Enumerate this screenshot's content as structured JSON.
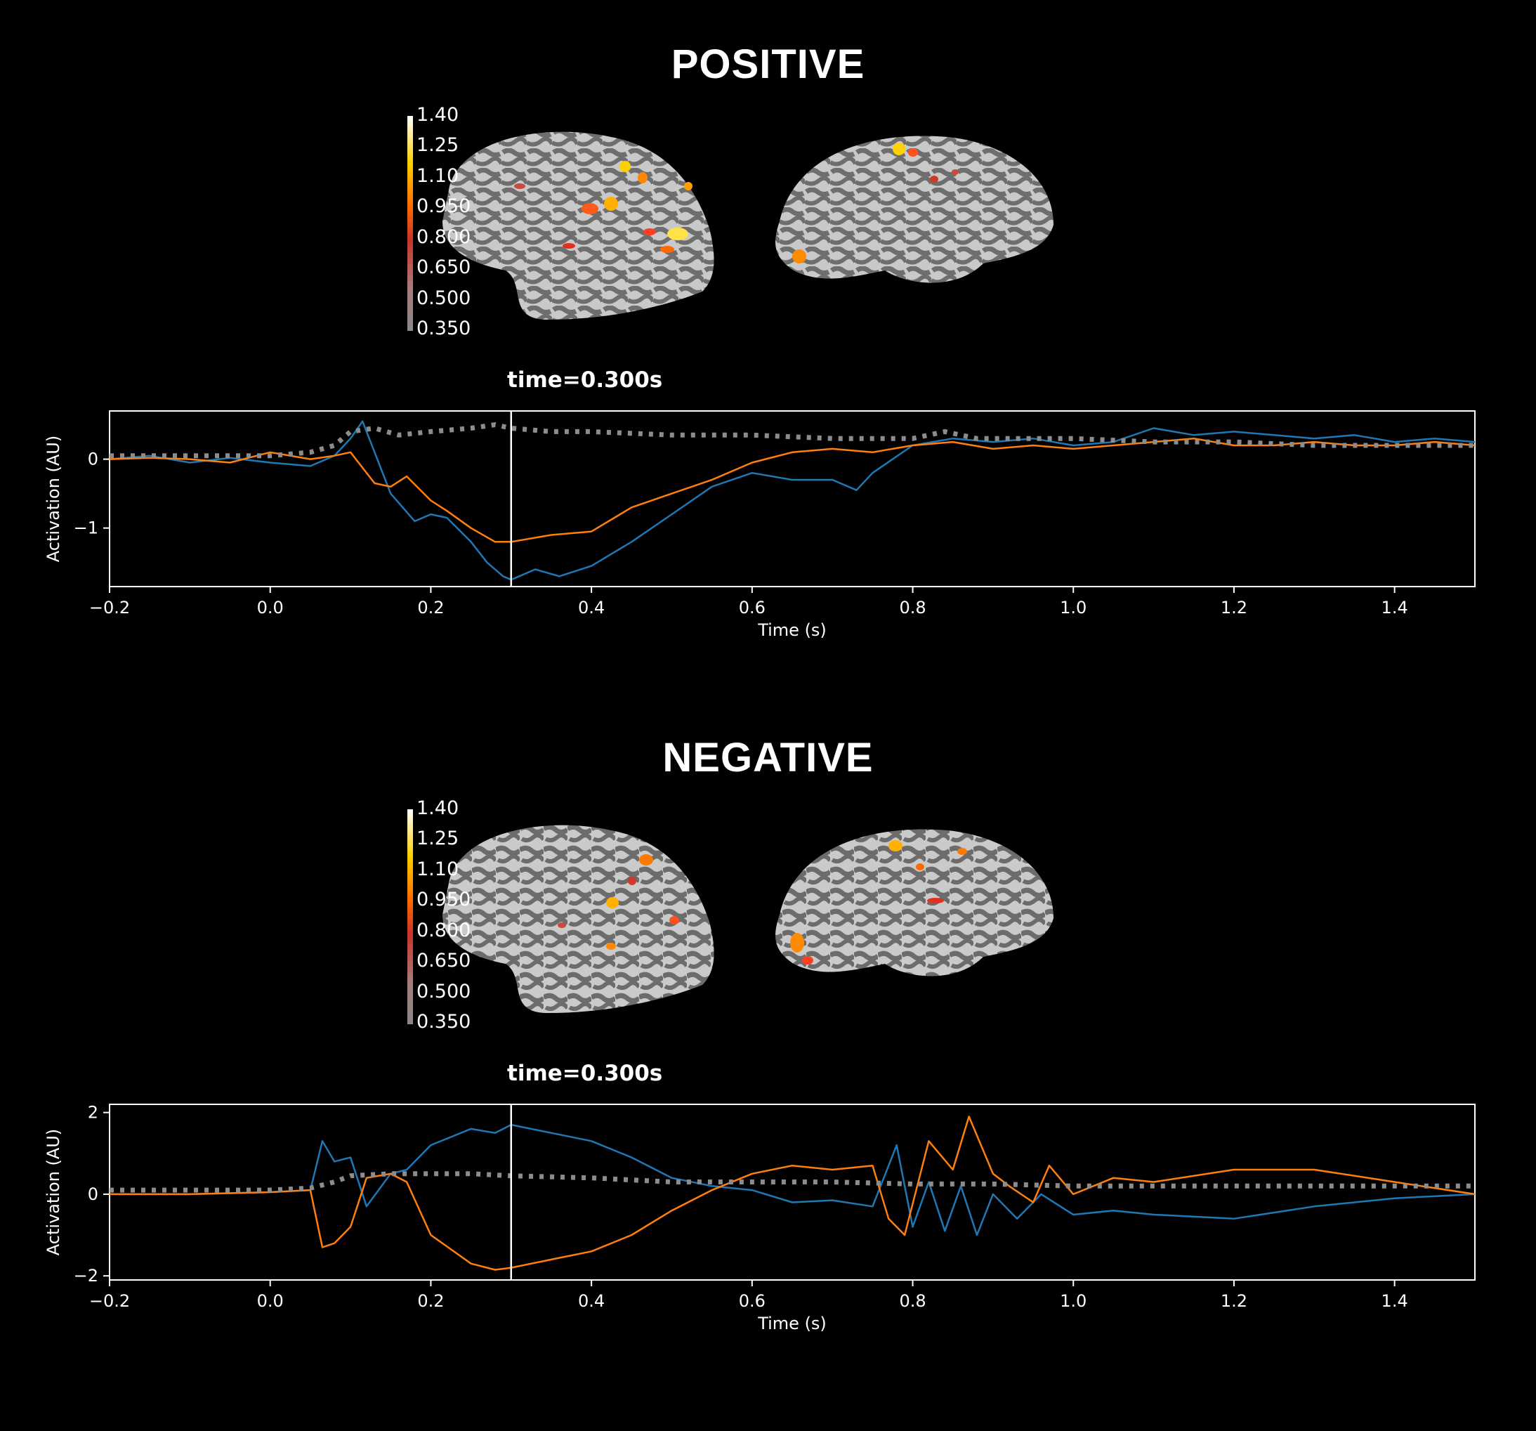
{
  "panels": [
    {
      "title": "POSITIVE",
      "time_label": "time=0.300s",
      "colorbar_ticks": [
        "1.40",
        "1.25",
        "1.10",
        "0.950",
        "0.800",
        "0.650",
        "0.500",
        "0.350"
      ],
      "colors": {
        "series_blue": "#1f77b4",
        "series_orange": "#ff7f0e",
        "dotted": "#8c8c8c",
        "cursor": "#ffffff"
      }
    },
    {
      "title": "NEGATIVE",
      "time_label": "time=0.300s",
      "colorbar_ticks": [
        "1.40",
        "1.25",
        "1.10",
        "0.950",
        "0.800",
        "0.650",
        "0.500",
        "0.350"
      ],
      "colors": {
        "series_blue": "#1f77b4",
        "series_orange": "#ff7f0e",
        "dotted": "#8c8c8c",
        "cursor": "#ffffff"
      }
    }
  ],
  "chart_data": [
    {
      "type": "line",
      "xlabel": "Time (s)",
      "ylabel": "Activation (AU)",
      "xlim": [
        -0.2,
        1.5
      ],
      "ylim": [
        -1.85,
        0.7
      ],
      "xticks": [
        "−0.2",
        "0.0",
        "0.2",
        "0.4",
        "0.6",
        "0.8",
        "1.0",
        "1.2",
        "1.4"
      ],
      "xtick_values": [
        -0.2,
        0.0,
        0.2,
        0.4,
        0.6,
        0.8,
        1.0,
        1.2,
        1.4
      ],
      "yticks": [
        "−1",
        "0"
      ],
      "ytick_values": [
        -1,
        0
      ],
      "cursor_x": 0.3,
      "grid": false,
      "series": [
        {
          "style": "solid",
          "color_key": "series_blue",
          "x": [
            -0.2,
            -0.15,
            -0.1,
            -0.05,
            0.0,
            0.05,
            0.08,
            0.1,
            0.115,
            0.13,
            0.15,
            0.18,
            0.2,
            0.22,
            0.25,
            0.27,
            0.29,
            0.3,
            0.33,
            0.36,
            0.4,
            0.45,
            0.5,
            0.55,
            0.6,
            0.65,
            0.7,
            0.73,
            0.75,
            0.8,
            0.85,
            0.9,
            0.95,
            1.0,
            1.05,
            1.1,
            1.15,
            1.2,
            1.25,
            1.3,
            1.35,
            1.4,
            1.45,
            1.5
          ],
          "y": [
            0.0,
            0.05,
            -0.05,
            0.02,
            -0.05,
            -0.1,
            0.05,
            0.3,
            0.55,
            0.1,
            -0.5,
            -0.9,
            -0.8,
            -0.85,
            -1.2,
            -1.5,
            -1.7,
            -1.75,
            -1.6,
            -1.7,
            -1.55,
            -1.2,
            -0.8,
            -0.4,
            -0.2,
            -0.3,
            -0.3,
            -0.45,
            -0.2,
            0.2,
            0.3,
            0.25,
            0.3,
            0.2,
            0.25,
            0.45,
            0.35,
            0.4,
            0.35,
            0.3,
            0.35,
            0.25,
            0.3,
            0.25
          ]
        },
        {
          "style": "solid",
          "color_key": "series_orange",
          "x": [
            -0.2,
            -0.15,
            -0.1,
            -0.05,
            0.0,
            0.05,
            0.08,
            0.1,
            0.13,
            0.15,
            0.17,
            0.2,
            0.22,
            0.25,
            0.28,
            0.3,
            0.35,
            0.4,
            0.45,
            0.5,
            0.55,
            0.6,
            0.65,
            0.7,
            0.75,
            0.8,
            0.85,
            0.9,
            0.95,
            1.0,
            1.05,
            1.1,
            1.15,
            1.2,
            1.25,
            1.3,
            1.35,
            1.4,
            1.45,
            1.5
          ],
          "y": [
            0.0,
            0.02,
            0.0,
            -0.05,
            0.1,
            0.0,
            0.05,
            0.1,
            -0.35,
            -0.4,
            -0.25,
            -0.6,
            -0.75,
            -1.0,
            -1.2,
            -1.2,
            -1.1,
            -1.05,
            -0.7,
            -0.5,
            -0.3,
            -0.05,
            0.1,
            0.15,
            0.1,
            0.2,
            0.25,
            0.15,
            0.2,
            0.15,
            0.2,
            0.25,
            0.3,
            0.2,
            0.2,
            0.25,
            0.2,
            0.2,
            0.25,
            0.2
          ]
        },
        {
          "style": "dotted",
          "color_key": "dotted",
          "x": [
            -0.2,
            -0.1,
            0.0,
            0.05,
            0.08,
            0.1,
            0.13,
            0.16,
            0.2,
            0.25,
            0.28,
            0.3,
            0.35,
            0.4,
            0.5,
            0.6,
            0.7,
            0.8,
            0.84,
            0.88,
            0.95,
            1.0,
            1.1,
            1.2,
            1.3,
            1.4,
            1.5
          ],
          "y": [
            0.05,
            0.05,
            0.05,
            0.1,
            0.2,
            0.4,
            0.45,
            0.35,
            0.4,
            0.45,
            0.5,
            0.45,
            0.4,
            0.4,
            0.35,
            0.35,
            0.3,
            0.3,
            0.4,
            0.3,
            0.3,
            0.3,
            0.25,
            0.25,
            0.2,
            0.2,
            0.2
          ]
        }
      ]
    },
    {
      "type": "line",
      "xlabel": "Time (s)",
      "ylabel": "Activation (AU)",
      "xlim": [
        -0.2,
        1.5
      ],
      "ylim": [
        -2.1,
        2.2
      ],
      "xticks": [
        "−0.2",
        "0.0",
        "0.2",
        "0.4",
        "0.6",
        "0.8",
        "1.0",
        "1.2",
        "1.4"
      ],
      "xtick_values": [
        -0.2,
        0.0,
        0.2,
        0.4,
        0.6,
        0.8,
        1.0,
        1.2,
        1.4
      ],
      "yticks": [
        "−2",
        "0",
        "2"
      ],
      "ytick_values": [
        -2,
        0,
        2
      ],
      "cursor_x": 0.3,
      "grid": false,
      "series": [
        {
          "style": "solid",
          "color_key": "series_blue",
          "x": [
            -0.2,
            -0.1,
            0.0,
            0.05,
            0.065,
            0.08,
            0.1,
            0.12,
            0.15,
            0.17,
            0.2,
            0.25,
            0.28,
            0.3,
            0.35,
            0.4,
            0.45,
            0.5,
            0.55,
            0.6,
            0.65,
            0.7,
            0.75,
            0.78,
            0.8,
            0.82,
            0.84,
            0.86,
            0.88,
            0.9,
            0.93,
            0.96,
            1.0,
            1.05,
            1.1,
            1.2,
            1.3,
            1.4,
            1.5
          ],
          "y": [
            0.0,
            0.0,
            0.05,
            0.1,
            1.3,
            0.8,
            0.9,
            -0.3,
            0.5,
            0.6,
            1.2,
            1.6,
            1.5,
            1.7,
            1.5,
            1.3,
            0.9,
            0.4,
            0.2,
            0.1,
            -0.2,
            -0.15,
            -0.3,
            1.2,
            -0.8,
            0.3,
            -0.9,
            0.2,
            -1.0,
            0.0,
            -0.6,
            0.0,
            -0.5,
            -0.4,
            -0.5,
            -0.6,
            -0.3,
            -0.1,
            0.0
          ]
        },
        {
          "style": "solid",
          "color_key": "series_orange",
          "x": [
            -0.2,
            -0.1,
            0.0,
            0.05,
            0.065,
            0.08,
            0.1,
            0.12,
            0.15,
            0.17,
            0.2,
            0.25,
            0.28,
            0.3,
            0.35,
            0.4,
            0.45,
            0.5,
            0.55,
            0.6,
            0.65,
            0.7,
            0.75,
            0.77,
            0.79,
            0.82,
            0.85,
            0.87,
            0.9,
            0.92,
            0.95,
            0.97,
            1.0,
            1.05,
            1.1,
            1.2,
            1.3,
            1.4,
            1.5
          ],
          "y": [
            0.0,
            0.0,
            0.05,
            0.1,
            -1.3,
            -1.2,
            -0.8,
            0.4,
            0.5,
            0.3,
            -1.0,
            -1.7,
            -1.85,
            -1.8,
            -1.6,
            -1.4,
            -1.0,
            -0.4,
            0.1,
            0.5,
            0.7,
            0.6,
            0.7,
            -0.6,
            -1.0,
            1.3,
            0.6,
            1.9,
            0.5,
            0.2,
            -0.2,
            0.7,
            0.0,
            0.4,
            0.3,
            0.6,
            0.6,
            0.3,
            0.0
          ]
        },
        {
          "style": "dotted",
          "color_key": "dotted",
          "x": [
            -0.2,
            -0.1,
            0.0,
            0.05,
            0.08,
            0.1,
            0.15,
            0.2,
            0.25,
            0.3,
            0.4,
            0.5,
            0.6,
            0.7,
            0.8,
            0.9,
            1.0,
            1.1,
            1.2,
            1.3,
            1.4,
            1.5
          ],
          "y": [
            0.1,
            0.1,
            0.1,
            0.15,
            0.3,
            0.45,
            0.5,
            0.5,
            0.5,
            0.45,
            0.4,
            0.3,
            0.3,
            0.3,
            0.25,
            0.25,
            0.2,
            0.2,
            0.2,
            0.2,
            0.2,
            0.2
          ]
        }
      ]
    }
  ]
}
